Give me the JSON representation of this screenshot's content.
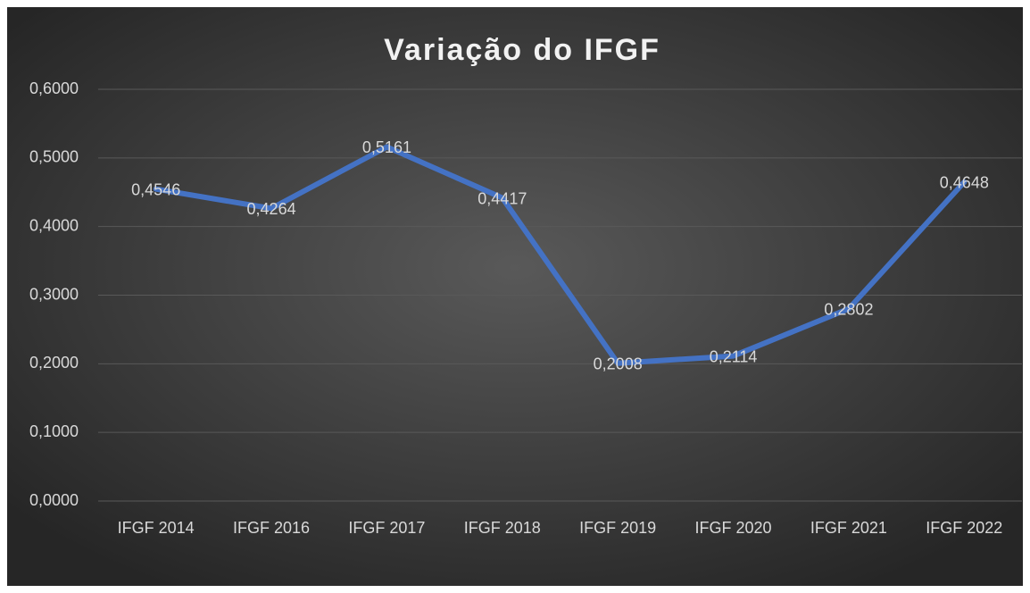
{
  "chart_data": {
    "type": "line",
    "title": "Variação do IFGF",
    "categories": [
      "IFGF 2014",
      "IFGF 2016",
      "IFGF 2017",
      "IFGF 2018",
      "IFGF 2019",
      "IFGF 2020",
      "IFGF 2021",
      "IFGF 2022"
    ],
    "values": [
      0.4546,
      0.4264,
      0.5161,
      0.4417,
      0.2008,
      0.2114,
      0.2802,
      0.4648
    ],
    "value_labels": [
      "0,4546",
      "0,4264",
      "0,5161",
      "0,4417",
      "0,2008",
      "0,2114",
      "0,2802",
      "0,4648"
    ],
    "color": "#4472c4",
    "ylim": [
      0,
      0.6
    ],
    "yticks": [
      {
        "value": 0,
        "label": "0,0000"
      },
      {
        "value": 0.1,
        "label": "0,1000"
      },
      {
        "value": 0.2,
        "label": "0,2000"
      },
      {
        "value": 0.3,
        "label": "0,3000"
      },
      {
        "value": 0.4,
        "label": "0,4000"
      },
      {
        "value": 0.5,
        "label": "0,5000"
      },
      {
        "value": 0.6,
        "label": "0,6000"
      }
    ],
    "grid": true
  }
}
